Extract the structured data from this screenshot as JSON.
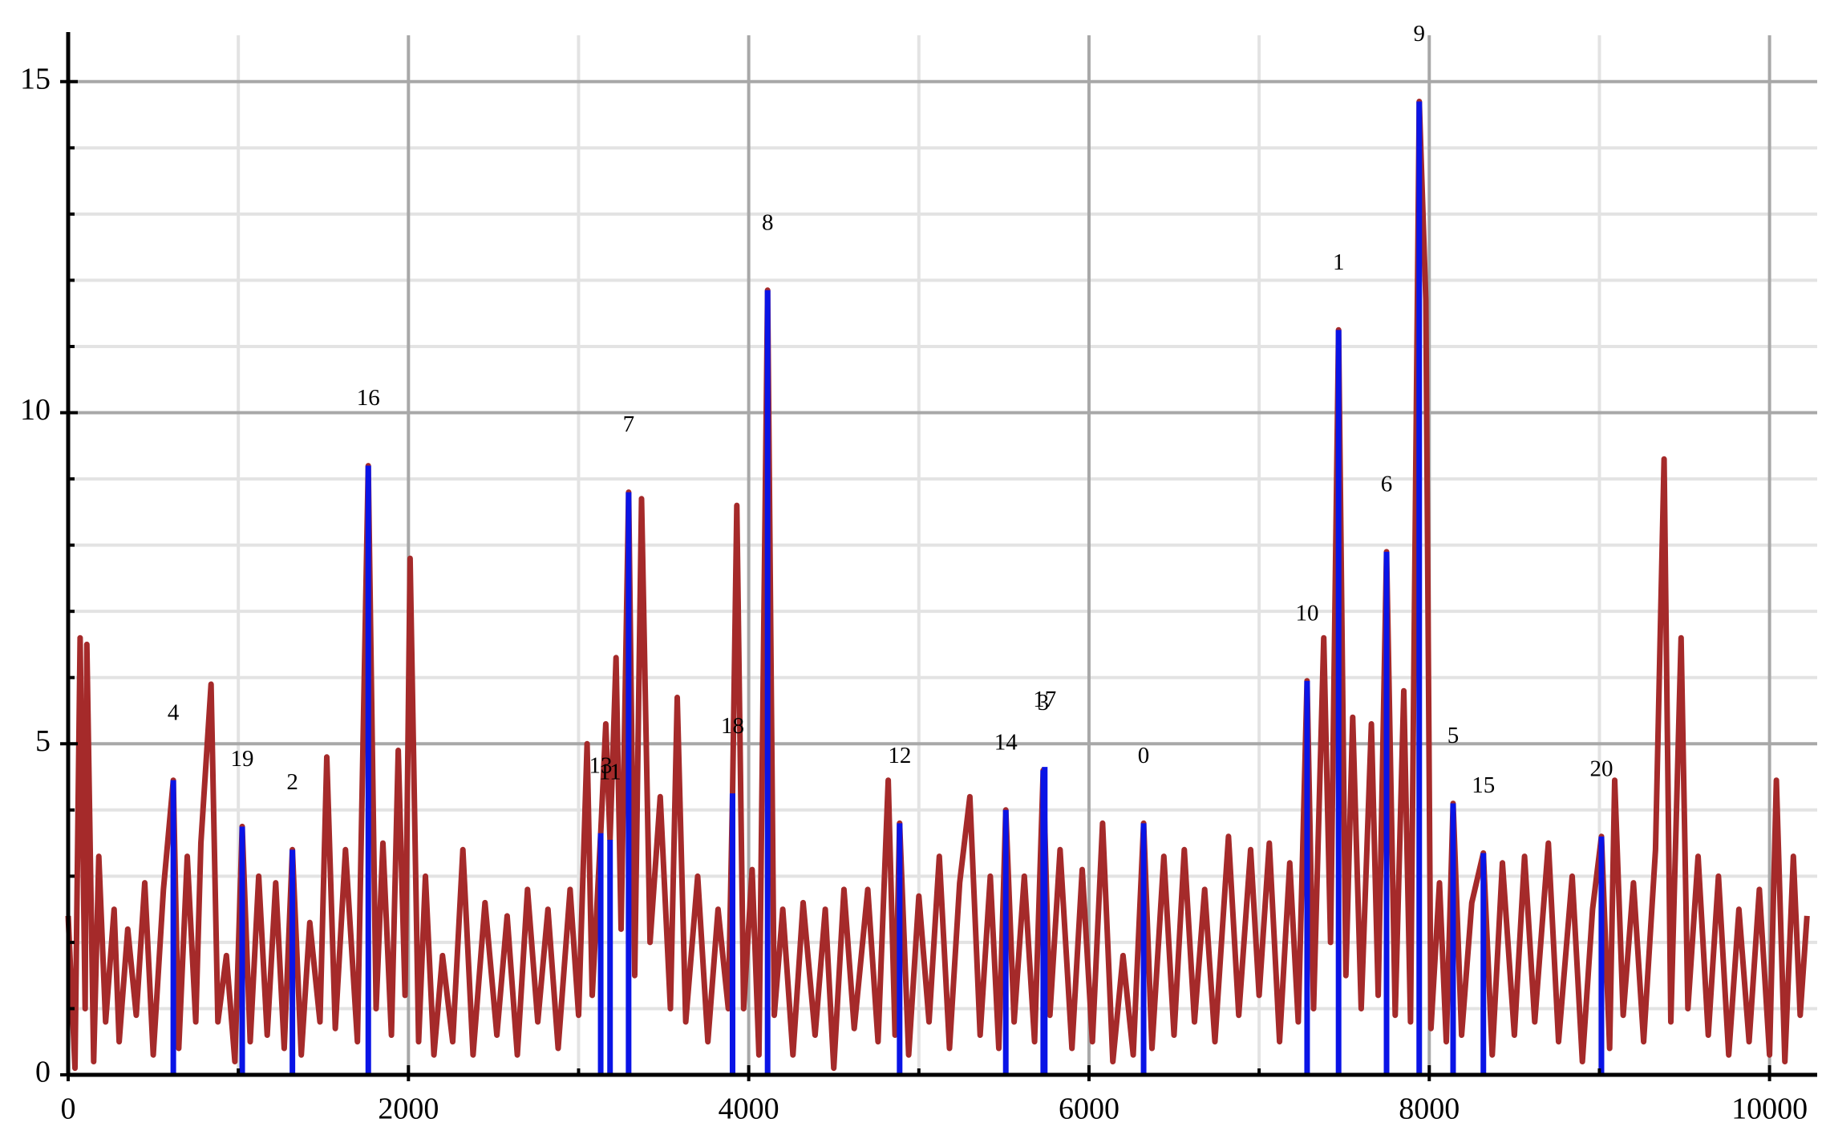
{
  "chart_data": {
    "type": "line",
    "xlim": [
      0,
      10280
    ],
    "ylim": [
      0,
      15.7
    ],
    "xticks": [
      0,
      2000,
      4000,
      6000,
      8000,
      10000
    ],
    "yticks": [
      0,
      5,
      10,
      15
    ],
    "minor_xticks": [
      1000,
      3000,
      5000,
      7000,
      9000
    ],
    "minor_yticks": [
      1,
      2,
      3,
      4,
      6,
      7,
      8,
      9,
      11,
      12,
      13,
      14
    ],
    "grid": true,
    "signal": {
      "color": "#a52a2a",
      "x": [
        0,
        40,
        70,
        100,
        110,
        150,
        180,
        220,
        270,
        300,
        350,
        400,
        450,
        500,
        560,
        618,
        650,
        700,
        750,
        780,
        840,
        880,
        930,
        980,
        1023,
        1070,
        1120,
        1170,
        1220,
        1270,
        1318,
        1370,
        1420,
        1480,
        1520,
        1570,
        1630,
        1700,
        1764,
        1810,
        1850,
        1900,
        1940,
        1980,
        2010,
        2060,
        2100,
        2150,
        2200,
        2260,
        2320,
        2380,
        2450,
        2520,
        2580,
        2640,
        2700,
        2760,
        2820,
        2880,
        2950,
        3000,
        3050,
        3080,
        3130,
        3160,
        3185,
        3220,
        3250,
        3294,
        3330,
        3370,
        3420,
        3480,
        3540,
        3580,
        3630,
        3700,
        3760,
        3820,
        3880,
        3905,
        3930,
        3970,
        4020,
        4060,
        4111,
        4150,
        4200,
        4260,
        4320,
        4390,
        4450,
        4500,
        4560,
        4620,
        4700,
        4760,
        4820,
        4860,
        4887,
        4940,
        5000,
        5060,
        5120,
        5180,
        5240,
        5300,
        5360,
        5420,
        5470,
        5511,
        5560,
        5620,
        5680,
        5731,
        5770,
        5830,
        5900,
        5960,
        6020,
        6080,
        6140,
        6200,
        6260,
        6321,
        6370,
        6440,
        6500,
        6560,
        6620,
        6680,
        6740,
        6820,
        6880,
        6950,
        7000,
        7060,
        7120,
        7180,
        7230,
        7282,
        7320,
        7380,
        7420,
        7467,
        7510,
        7550,
        7600,
        7660,
        7700,
        7749,
        7800,
        7850,
        7890,
        7941,
        7980,
        8010,
        8060,
        8100,
        8140,
        8190,
        8250,
        8318,
        8370,
        8430,
        8500,
        8560,
        8620,
        8700,
        8760,
        8840,
        8900,
        8960,
        9012,
        9060,
        9090,
        9140,
        9200,
        9260,
        9330,
        9380,
        9420,
        9480,
        9520,
        9580,
        9640,
        9700,
        9760,
        9820,
        9880,
        9940,
        10000,
        10040,
        10090,
        10140,
        10180,
        10220
      ],
      "values": [
        2.4,
        0.1,
        6.6,
        1.0,
        6.5,
        0.2,
        3.3,
        0.8,
        2.5,
        0.5,
        2.2,
        0.9,
        2.9,
        0.3,
        2.8,
        4.45,
        0.4,
        3.3,
        0.8,
        3.5,
        5.9,
        0.8,
        1.8,
        0.2,
        3.75,
        0.5,
        3.0,
        0.6,
        2.9,
        0.4,
        3.4,
        0.3,
        2.3,
        0.8,
        4.8,
        0.7,
        3.4,
        0.5,
        9.2,
        1.0,
        3.5,
        0.6,
        4.9,
        1.2,
        7.8,
        0.5,
        3.0,
        0.3,
        1.8,
        0.5,
        3.4,
        0.3,
        2.6,
        0.6,
        2.4,
        0.3,
        2.8,
        0.8,
        2.5,
        0.4,
        2.8,
        0.9,
        5.0,
        1.2,
        3.65,
        5.3,
        3.55,
        6.3,
        2.2,
        8.8,
        1.5,
        8.7,
        2.0,
        4.2,
        1.0,
        5.7,
        0.8,
        3.0,
        0.5,
        2.5,
        1.0,
        4.25,
        8.6,
        1.0,
        3.1,
        0.3,
        11.85,
        0.9,
        2.5,
        0.3,
        2.6,
        0.6,
        2.5,
        0.1,
        2.8,
        0.7,
        2.8,
        0.5,
        4.45,
        0.6,
        3.8,
        0.3,
        2.7,
        0.8,
        3.3,
        0.4,
        2.9,
        4.2,
        0.6,
        3.0,
        0.4,
        4.0,
        0.8,
        3.0,
        0.5,
        4.6,
        0.9,
        3.4,
        0.4,
        3.1,
        0.5,
        3.8,
        0.2,
        1.8,
        0.3,
        3.8,
        0.4,
        3.3,
        0.6,
        3.4,
        0.8,
        2.8,
        0.5,
        3.6,
        0.9,
        3.4,
        1.2,
        3.5,
        0.5,
        3.2,
        0.8,
        5.95,
        1.0,
        6.6,
        2.0,
        11.25,
        1.5,
        5.4,
        1.0,
        5.3,
        1.2,
        7.9,
        0.9,
        5.8,
        0.8,
        14.7,
        11.7,
        0.7,
        2.9,
        0.5,
        4.1,
        0.6,
        2.6,
        3.35,
        0.3,
        3.2,
        0.6,
        3.3,
        0.8,
        3.5,
        0.5,
        3.0,
        0.2,
        2.5,
        3.6,
        0.4,
        4.45,
        0.9,
        2.9,
        0.5,
        3.4,
        9.3,
        0.8,
        6.6,
        1.0,
        3.3,
        0.6,
        3.0,
        0.3,
        2.5,
        0.5,
        2.8,
        0.3,
        4.45,
        0.2,
        3.3,
        0.9,
        2.4
      ]
    },
    "peaks": {
      "color": "#0a14e6",
      "x": [
        618,
        1023,
        1318,
        1764,
        3130,
        3185,
        3294,
        3905,
        4111,
        4887,
        5511,
        5731,
        5740,
        6321,
        7282,
        7467,
        7749,
        7941,
        8140,
        8318,
        9012
      ],
      "values": [
        4.45,
        3.75,
        3.4,
        9.2,
        3.65,
        3.55,
        8.8,
        4.25,
        11.85,
        3.8,
        4.0,
        4.6,
        4.65,
        3.8,
        5.95,
        11.25,
        7.9,
        14.7,
        4.1,
        3.35,
        3.6
      ],
      "labels": [
        "4",
        "19",
        "2",
        "16",
        "13",
        "11",
        "7",
        "18",
        "8",
        "12",
        "14",
        "3",
        "17",
        "0",
        "10",
        "1",
        "6",
        "9",
        "5",
        "15",
        "20"
      ]
    }
  }
}
